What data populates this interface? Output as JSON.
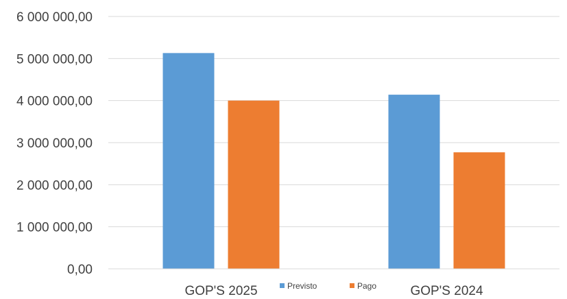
{
  "chart_data": {
    "type": "bar",
    "categories": [
      "GOP'S 2025",
      "GOP'S 2024"
    ],
    "series": [
      {
        "name": "Previsto",
        "color": "#5b9bd5",
        "values": [
          5130000,
          4140000
        ]
      },
      {
        "name": "Pago",
        "color": "#ed7d31",
        "values": [
          4000000,
          2770000
        ]
      }
    ],
    "ylim": [
      0,
      6000000
    ],
    "yticks": [
      {
        "value": 0,
        "label": "0,00"
      },
      {
        "value": 1000000,
        "label": "1 000 000,00"
      },
      {
        "value": 2000000,
        "label": "2 000 000,00"
      },
      {
        "value": 3000000,
        "label": "3 000 000,00"
      },
      {
        "value": 4000000,
        "label": "4 000 000,00"
      },
      {
        "value": 5000000,
        "label": "5 000 000,00"
      },
      {
        "value": 6000000,
        "label": "6 000 000,00"
      }
    ],
    "title": "",
    "xlabel": "",
    "ylabel": "",
    "grid": true,
    "legend_position": "bottom"
  }
}
